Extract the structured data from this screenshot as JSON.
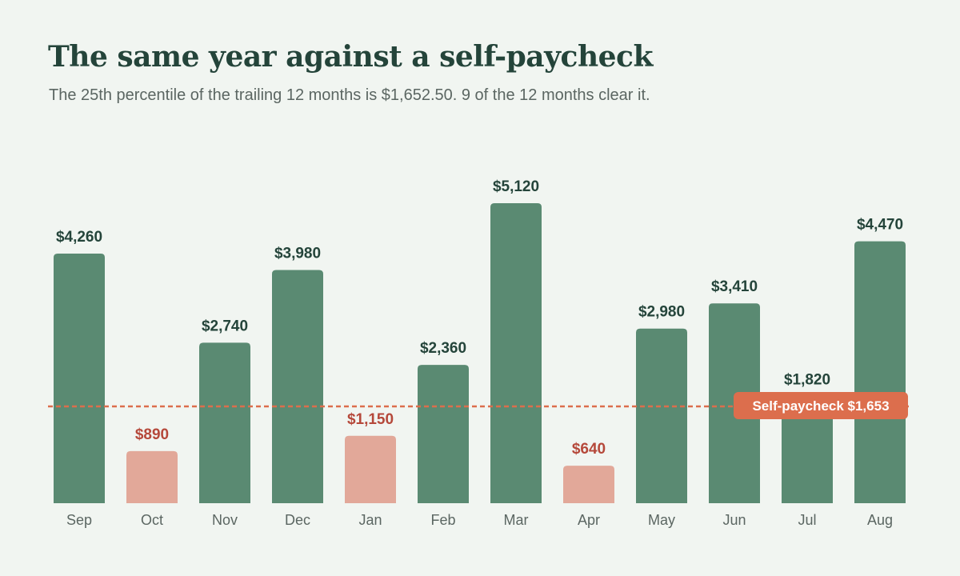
{
  "title": "The same year against a self-paycheck",
  "subtitle": "The 25th percentile of the trailing 12 months is $1,652.50. 9 of the 12 months clear it.",
  "colors": {
    "above": "#5a8a72",
    "below": "#e2a899",
    "above_label": "#24443a",
    "below_label": "#b5483a",
    "threshold": "#dc6e4d",
    "title": "#24443a",
    "subtitle": "#5b6662"
  },
  "chart_data": {
    "type": "bar",
    "categories": [
      "Sep",
      "Oct",
      "Nov",
      "Dec",
      "Jan",
      "Feb",
      "Mar",
      "Apr",
      "May",
      "Jun",
      "Jul",
      "Aug"
    ],
    "values": [
      4260,
      890,
      2740,
      3980,
      1150,
      2360,
      5120,
      640,
      2980,
      3410,
      1820,
      4470
    ],
    "value_labels": [
      "$4,260",
      "$890",
      "$2,740",
      "$3,980",
      "$1,150",
      "$2,360",
      "$5,120",
      "$640",
      "$2,980",
      "$3,410",
      "$1,820",
      "$4,470"
    ],
    "ylim": [
      0,
      5120
    ],
    "grid": false,
    "threshold": {
      "value": 1652.5,
      "label": "Self-paycheck $1,653",
      "style": "dashed"
    }
  }
}
